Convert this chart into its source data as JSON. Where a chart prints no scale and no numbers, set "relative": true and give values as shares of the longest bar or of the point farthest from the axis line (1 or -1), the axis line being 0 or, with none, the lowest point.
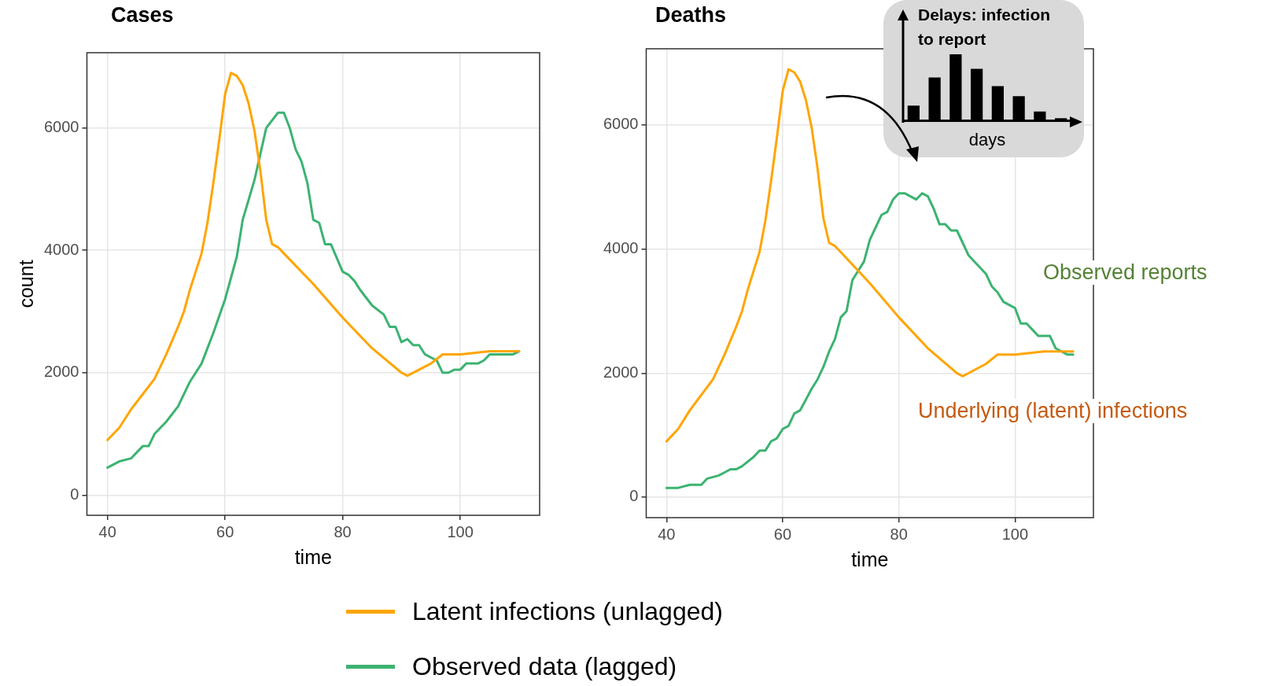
{
  "chart_data": [
    {
      "type": "line",
      "title": "Cases",
      "xlabel": "time",
      "ylabel": "count",
      "xlim": [
        36.5,
        113.5
      ],
      "ylim": [
        -330,
        7230
      ],
      "xticks": [
        40,
        60,
        80,
        100
      ],
      "yticks": [
        0,
        2000,
        4000,
        6000
      ],
      "grid": true,
      "legend": "bottom",
      "marker": "none",
      "series": [
        {
          "name": "Latent infections (unlagged)",
          "color": "#ffa500",
          "x": [
            40,
            41,
            42,
            44,
            46,
            48,
            50,
            52,
            53,
            54,
            56,
            57,
            58,
            59,
            60,
            61,
            62,
            63,
            64,
            65,
            66,
            67,
            68,
            69,
            70,
            75,
            80,
            85,
            90,
            91,
            95,
            97,
            98,
            100,
            105,
            110
          ],
          "values": [
            900,
            1000,
            1100,
            1400,
            1650,
            1900,
            2300,
            2750,
            3000,
            3350,
            3950,
            4450,
            5100,
            5800,
            6550,
            6900,
            6850,
            6700,
            6400,
            5950,
            5300,
            4500,
            4100,
            4050,
            3950,
            3450,
            2900,
            2400,
            2000,
            1950,
            2150,
            2300,
            2300,
            2300,
            2350,
            2350
          ]
        },
        {
          "name": "Observed data (lagged)",
          "color": "#3cb371",
          "x": [
            40,
            42,
            44,
            45,
            46,
            47,
            48,
            50,
            52,
            54,
            56,
            58,
            60,
            62,
            63,
            65,
            67,
            69,
            70,
            71,
            72,
            73,
            74,
            75,
            76,
            77,
            78,
            80,
            81,
            82,
            83,
            85,
            87,
            88,
            89,
            90,
            91,
            92,
            93,
            94,
            96,
            97,
            98,
            99,
            100,
            101,
            102,
            103,
            104,
            105,
            107,
            108,
            109,
            110
          ],
          "values": [
            450,
            550,
            600,
            700,
            800,
            800,
            1000,
            1200,
            1450,
            1850,
            2150,
            2650,
            3200,
            3900,
            4500,
            5150,
            6000,
            6250,
            6250,
            6000,
            5650,
            5450,
            5100,
            4500,
            4450,
            4100,
            4100,
            3650,
            3600,
            3500,
            3350,
            3100,
            2950,
            2750,
            2750,
            2500,
            2550,
            2450,
            2450,
            2300,
            2200,
            2000,
            2000,
            2050,
            2050,
            2150,
            2150,
            2150,
            2200,
            2300,
            2300,
            2300,
            2300,
            2350
          ]
        }
      ]
    },
    {
      "type": "line",
      "title": "Deaths",
      "xlabel": "time",
      "xlim": [
        36.5,
        113.5
      ],
      "ylim": [
        -330,
        7230
      ],
      "xticks": [
        40,
        60,
        80,
        100
      ],
      "yticks": [
        0,
        2000,
        4000,
        6000
      ],
      "grid": true,
      "marker": "none",
      "annotations": [
        "Observed reports",
        "Underlying (latent) infections"
      ],
      "series": [
        {
          "color": "#ffa500",
          "x": [
            40,
            41,
            42,
            44,
            46,
            48,
            50,
            52,
            53,
            54,
            56,
            57,
            58,
            59,
            60,
            61,
            62,
            63,
            64,
            65,
            66,
            67,
            68,
            69,
            70,
            75,
            80,
            85,
            90,
            91,
            95,
            97,
            98,
            100,
            105,
            110
          ],
          "values": [
            900,
            1000,
            1100,
            1400,
            1650,
            1900,
            2300,
            2750,
            3000,
            3350,
            3950,
            4450,
            5100,
            5800,
            6550,
            6900,
            6850,
            6700,
            6400,
            5950,
            5300,
            4500,
            4100,
            4050,
            3950,
            3450,
            2900,
            2400,
            2000,
            1950,
            2150,
            2300,
            2300,
            2300,
            2350,
            2350
          ]
        },
        {
          "color": "#3cb371",
          "x": [
            40,
            41,
            42,
            44,
            46,
            47,
            49,
            50,
            51,
            52,
            53,
            55,
            56,
            57,
            58,
            59,
            60,
            61,
            62,
            63,
            65,
            66,
            67,
            68,
            69,
            70,
            71,
            72,
            73,
            74,
            75,
            76,
            77,
            78,
            79,
            80,
            81,
            82,
            83,
            84,
            85,
            86,
            87,
            88,
            89,
            90,
            91,
            92,
            93,
            94,
            95,
            96,
            97,
            98,
            99,
            100,
            101,
            102,
            103,
            104,
            105,
            106,
            107,
            108,
            109,
            110
          ],
          "values": [
            150,
            150,
            150,
            200,
            200,
            300,
            350,
            400,
            450,
            450,
            500,
            650,
            750,
            750,
            900,
            950,
            1100,
            1150,
            1350,
            1400,
            1750,
            1900,
            2100,
            2350,
            2550,
            2900,
            3000,
            3500,
            3650,
            3800,
            4150,
            4350,
            4550,
            4600,
            4800,
            4900,
            4900,
            4850,
            4800,
            4900,
            4850,
            4650,
            4400,
            4400,
            4300,
            4300,
            4100,
            3900,
            3800,
            3700,
            3600,
            3400,
            3300,
            3150,
            3100,
            3050,
            2800,
            2800,
            2700,
            2600,
            2600,
            2600,
            2400,
            2350,
            2300,
            2300
          ]
        }
      ]
    },
    {
      "type": "bar",
      "title": "Delays: infection to report",
      "xlabel": "days",
      "relative": true,
      "color": "#000000",
      "categories": [
        null,
        null,
        null,
        null,
        null,
        null,
        null,
        null
      ],
      "values": [
        0.23,
        0.65,
        1,
        0.78,
        0.52,
        0.37,
        0.14,
        0.04
      ]
    }
  ]
}
